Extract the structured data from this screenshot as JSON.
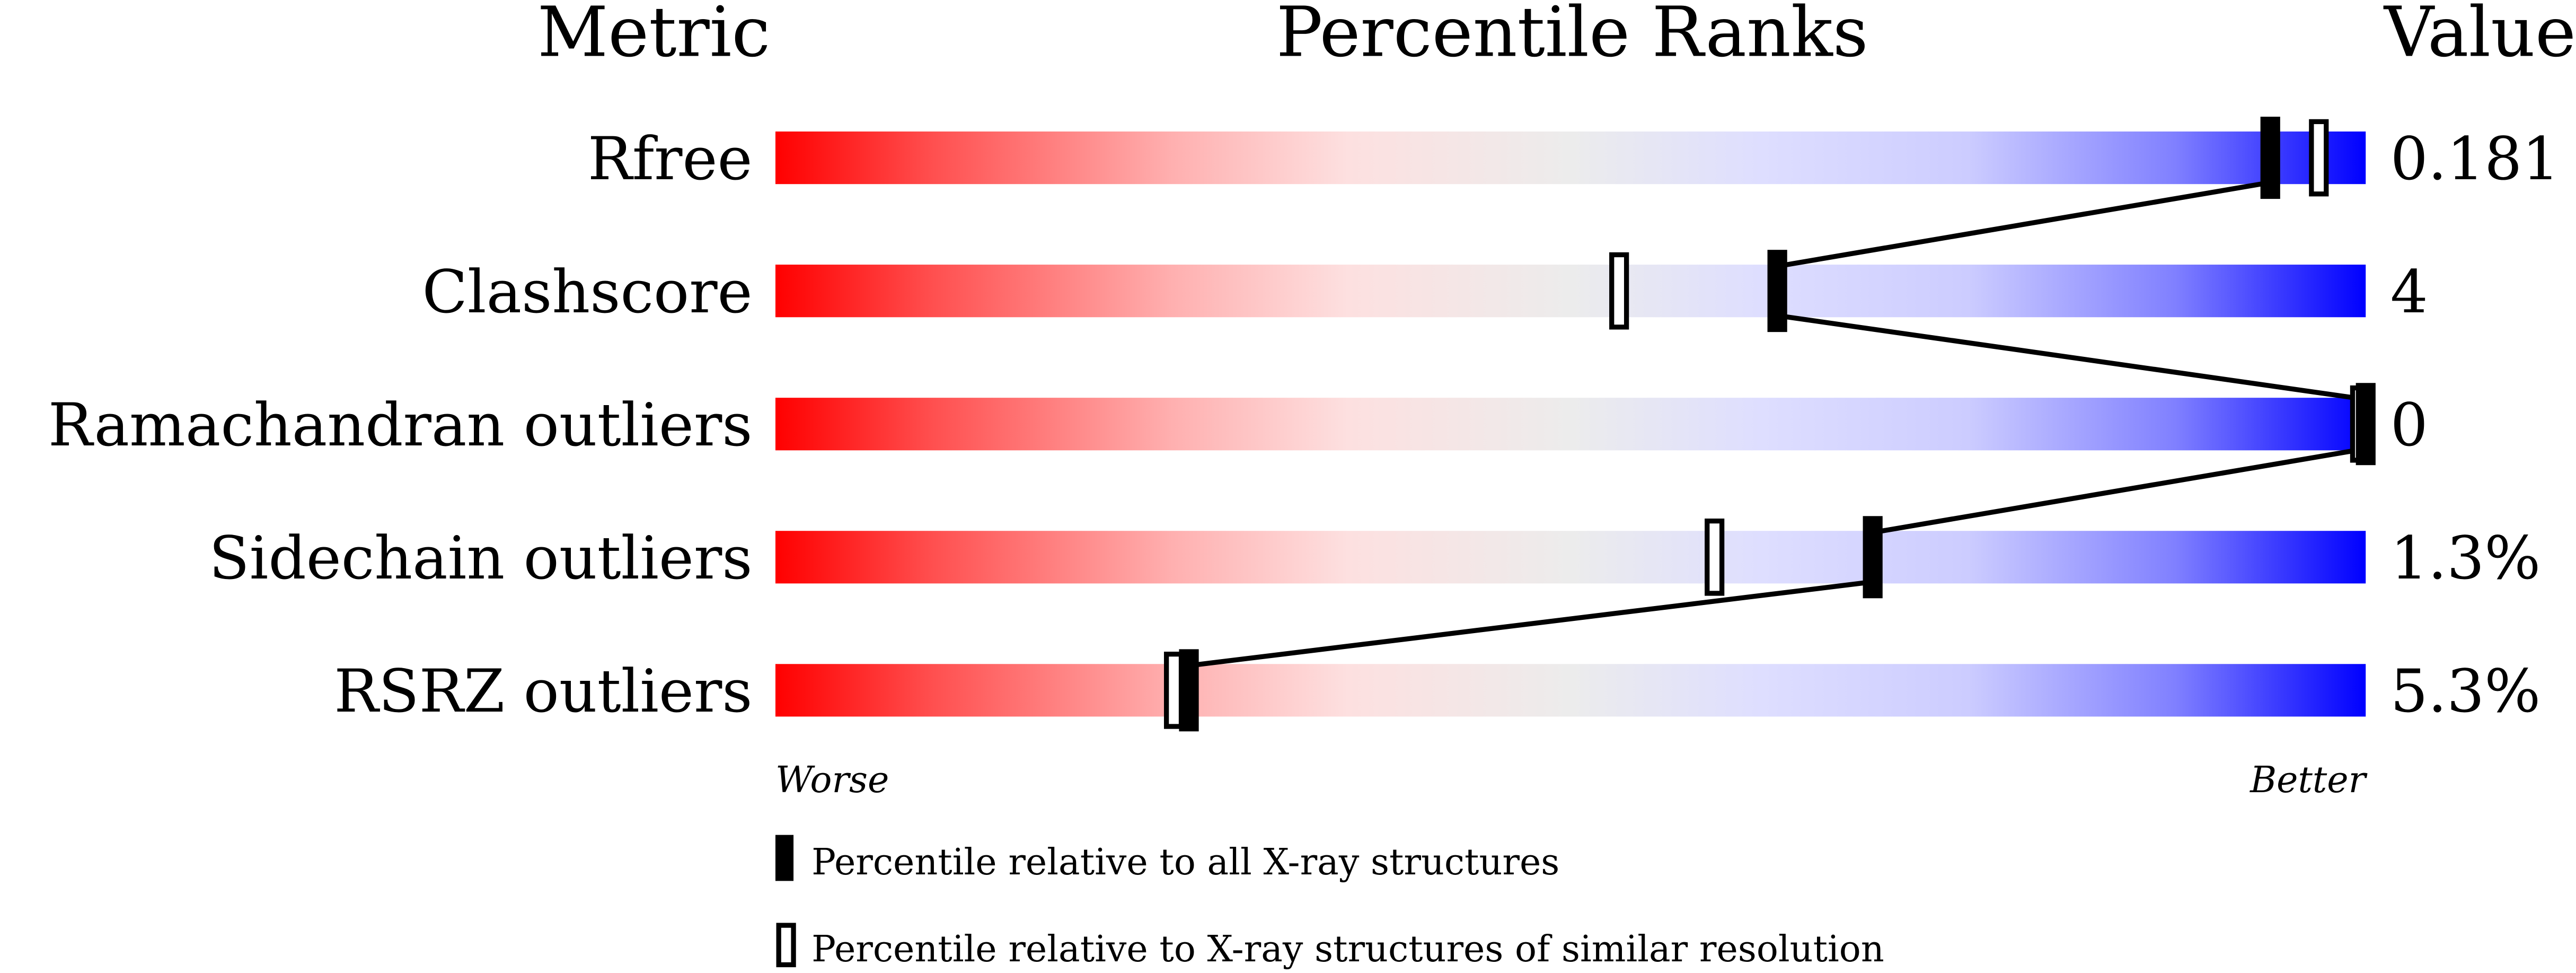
{
  "chart_data": {
    "type": "percentile-slider",
    "headers": {
      "metric": "Metric",
      "ranks": "Percentile Ranks",
      "value": "Value"
    },
    "axis": {
      "left_label": "Worse",
      "right_label": "Better",
      "range": [
        0,
        100
      ]
    },
    "rows": [
      {
        "metric": "Rfree",
        "value": "0.181",
        "percentile_all": 94,
        "percentile_similar": 97
      },
      {
        "metric": "Clashscore",
        "value": "4",
        "percentile_all": 63,
        "percentile_similar": 53
      },
      {
        "metric": "Ramachandran outliers",
        "value": "0",
        "percentile_all": 100,
        "percentile_similar": 100
      },
      {
        "metric": "Sidechain outliers",
        "value": "1.3%",
        "percentile_all": 69,
        "percentile_similar": 59
      },
      {
        "metric": "RSRZ outliers",
        "value": "5.3%",
        "percentile_all": 26,
        "percentile_similar": 25
      }
    ],
    "legend": [
      {
        "marker": "filled",
        "label": "Percentile relative to all X-ray structures"
      },
      {
        "marker": "open",
        "label": "Percentile relative to X-ray structures of similar resolution"
      }
    ],
    "colors": {
      "worse": "#ff0000",
      "middle": "#eeeeee",
      "better": "#0000ff"
    }
  }
}
